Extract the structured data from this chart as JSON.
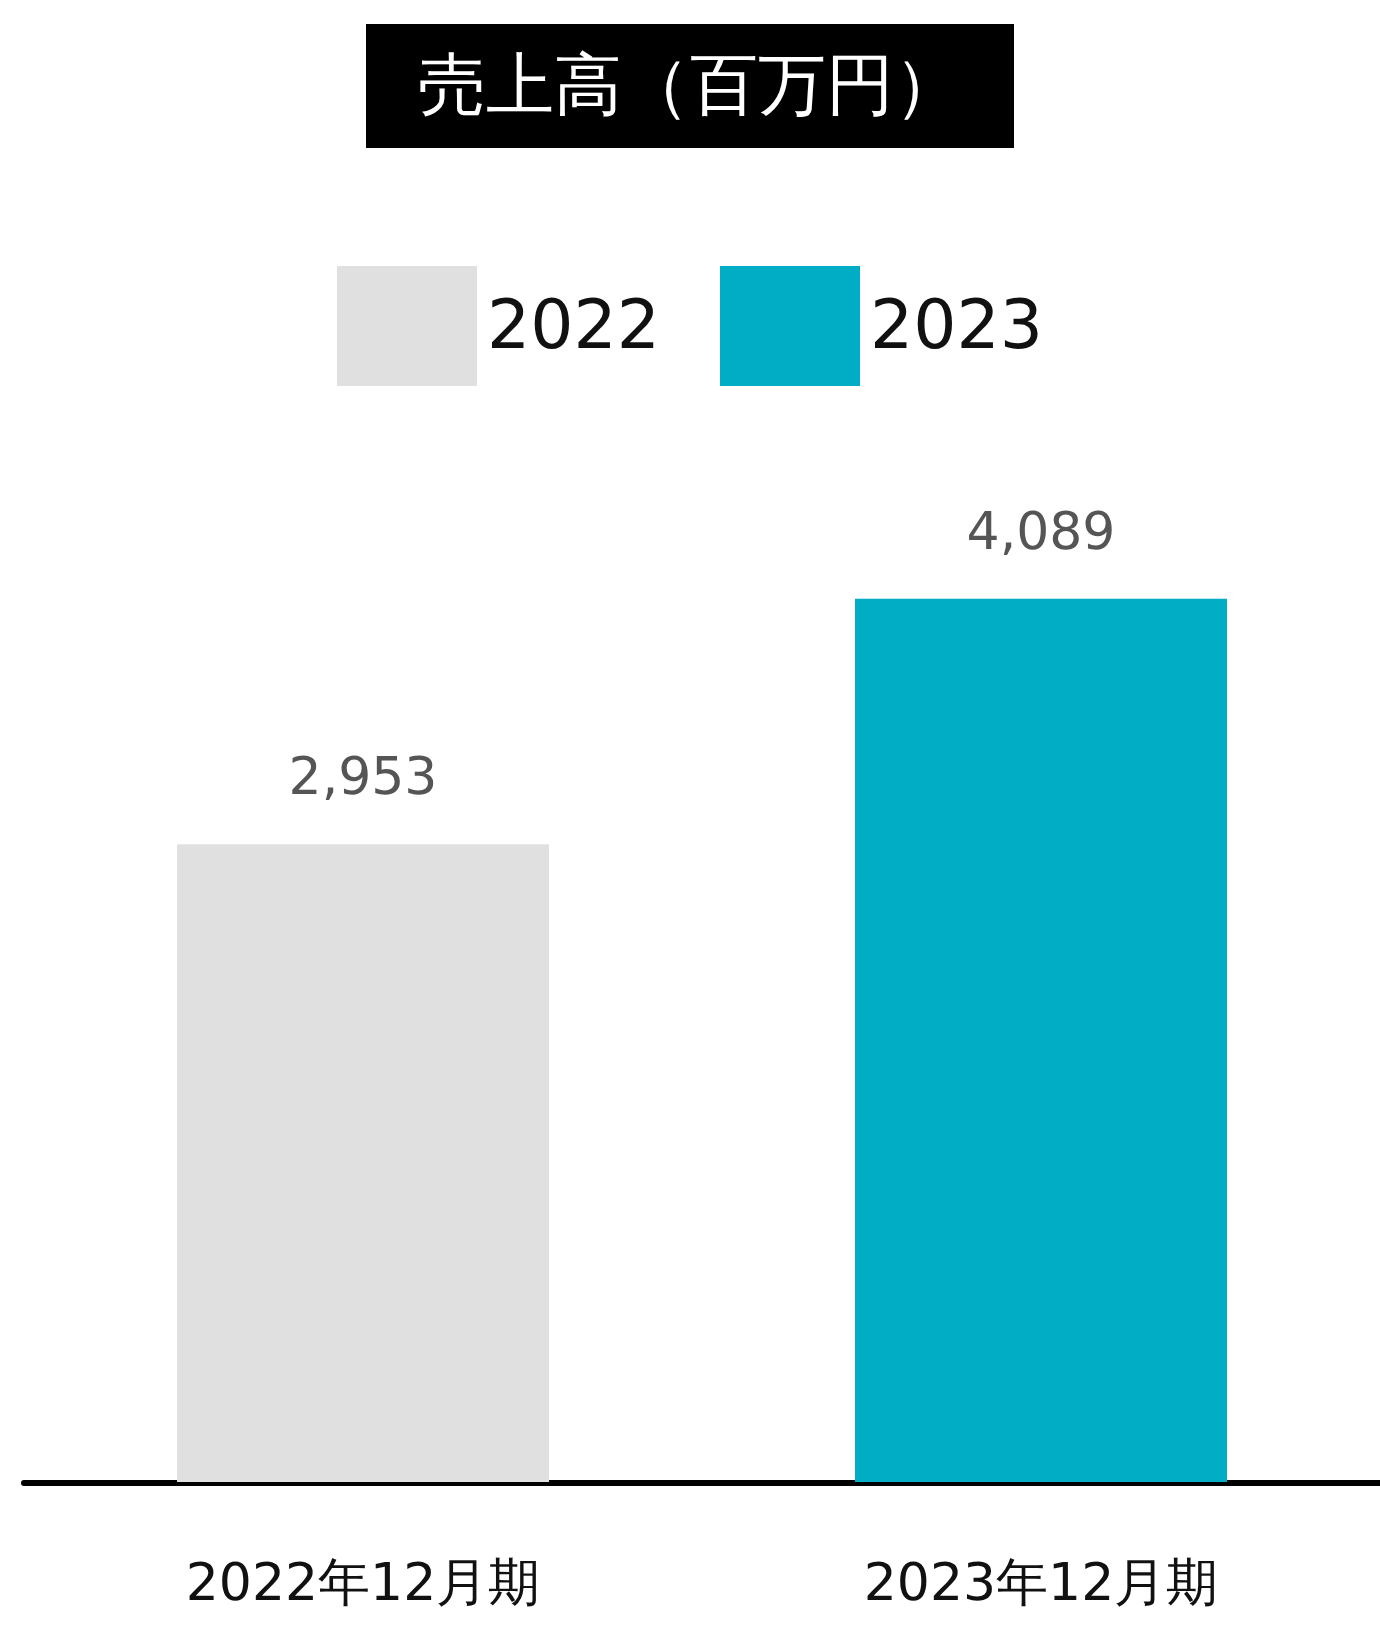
{
  "chart_data": {
    "type": "bar",
    "title": "売上高（百万円）",
    "categories": [
      "2022年12月期",
      "2023年12月期"
    ],
    "series": [
      {
        "name": "2022",
        "color": "#e0e0e0",
        "values": [
          2953,
          null
        ],
        "value_labels": [
          "2,953",
          null
        ]
      },
      {
        "name": "2023",
        "color": "#00adc4",
        "values": [
          null,
          4089
        ],
        "value_labels": [
          null,
          "4,089"
        ]
      }
    ],
    "legend": "top"
  }
}
